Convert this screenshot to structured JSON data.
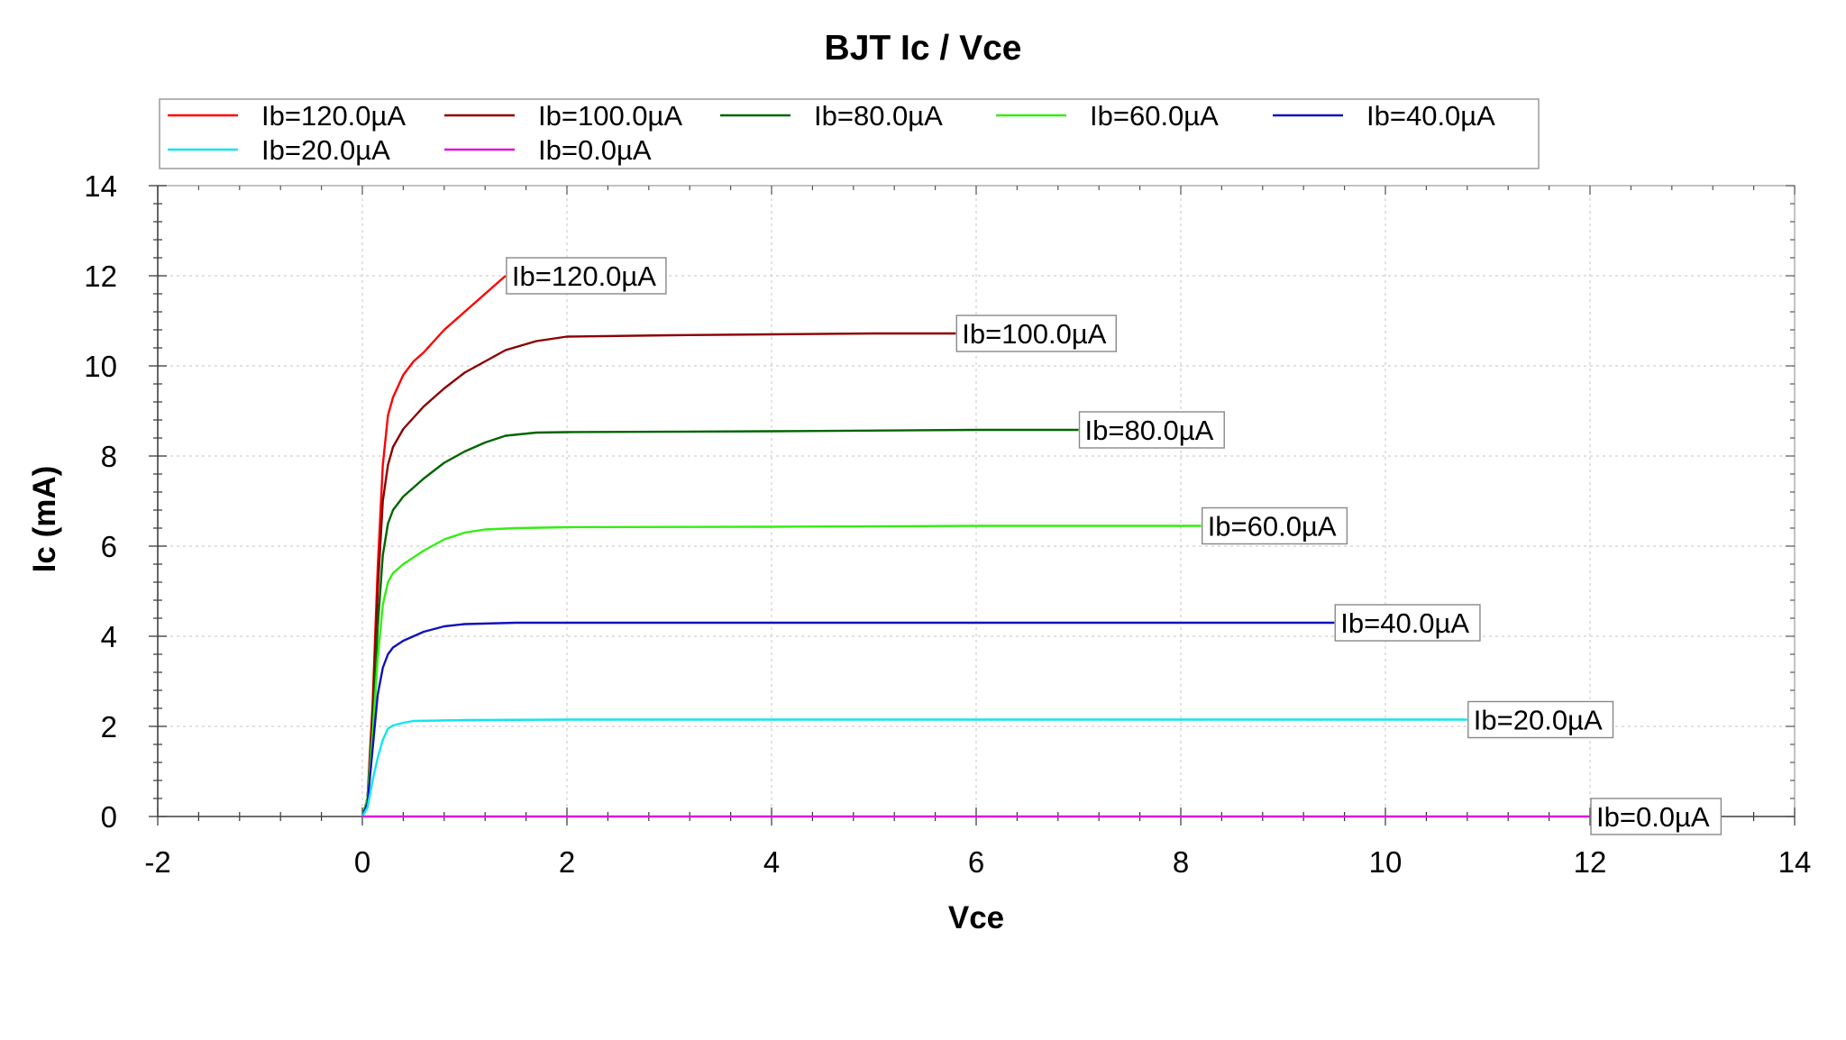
{
  "chart_data": {
    "type": "line",
    "title": "BJT Ic / Vce",
    "xlabel": "Vce",
    "ylabel": "Ic (mA)",
    "xlim": [
      -2,
      14
    ],
    "ylim": [
      0,
      14
    ],
    "xticks": [
      "-2",
      "0",
      "2",
      "4",
      "6",
      "8",
      "10",
      "12",
      "14"
    ],
    "yticks": [
      "0",
      "2",
      "4",
      "6",
      "8",
      "10",
      "12",
      "14"
    ],
    "grid": true,
    "legend_position": "top",
    "series": [
      {
        "name": "Ib=120.0µA",
        "color": "#ff0000",
        "x": [
          0,
          0.05,
          0.1,
          0.15,
          0.2,
          0.25,
          0.3,
          0.4,
          0.5,
          0.6,
          0.8,
          1.0,
          1.2,
          1.4
        ],
        "y": [
          0,
          0.4,
          2.5,
          5.5,
          7.8,
          8.9,
          9.3,
          9.8,
          10.1,
          10.3,
          10.8,
          11.2,
          11.6,
          12.0
        ]
      },
      {
        "name": "Ib=100.0µA",
        "color": "#8b0000",
        "x": [
          0,
          0.05,
          0.1,
          0.15,
          0.2,
          0.25,
          0.3,
          0.4,
          0.6,
          0.8,
          1.0,
          1.2,
          1.4,
          1.7,
          2.0,
          3.0,
          4.0,
          5.0,
          5.8
        ],
        "y": [
          0,
          0.4,
          2.3,
          5.0,
          7.0,
          7.8,
          8.2,
          8.6,
          9.1,
          9.5,
          9.85,
          10.1,
          10.35,
          10.55,
          10.65,
          10.68,
          10.7,
          10.72,
          10.72
        ]
      },
      {
        "name": "Ib=80.0µA",
        "color": "#006400",
        "x": [
          0,
          0.05,
          0.1,
          0.15,
          0.2,
          0.25,
          0.3,
          0.4,
          0.6,
          0.8,
          1.0,
          1.2,
          1.4,
          1.7,
          2.0,
          4.0,
          6.0,
          7.0
        ],
        "y": [
          0,
          0.4,
          2.0,
          4.2,
          5.8,
          6.5,
          6.8,
          7.1,
          7.5,
          7.85,
          8.1,
          8.3,
          8.45,
          8.52,
          8.53,
          8.55,
          8.58,
          8.58
        ]
      },
      {
        "name": "Ib=60.0µA",
        "color": "#33ee11",
        "x": [
          0,
          0.05,
          0.1,
          0.15,
          0.2,
          0.25,
          0.3,
          0.4,
          0.6,
          0.8,
          1.0,
          1.2,
          1.5,
          2.0,
          4.0,
          6.0,
          8.2
        ],
        "y": [
          0,
          0.4,
          1.8,
          3.5,
          4.7,
          5.2,
          5.4,
          5.6,
          5.9,
          6.15,
          6.3,
          6.37,
          6.4,
          6.42,
          6.43,
          6.45,
          6.45
        ]
      },
      {
        "name": "Ib=40.0µA",
        "color": "#1111bb",
        "x": [
          0,
          0.05,
          0.1,
          0.15,
          0.2,
          0.25,
          0.3,
          0.4,
          0.6,
          0.8,
          1.0,
          1.5,
          2.0,
          4.0,
          6.0,
          8.0,
          9.5
        ],
        "y": [
          0,
          0.3,
          1.5,
          2.7,
          3.3,
          3.6,
          3.75,
          3.9,
          4.1,
          4.22,
          4.27,
          4.3,
          4.3,
          4.3,
          4.3,
          4.3,
          4.3
        ]
      },
      {
        "name": "Ib=20.0µA",
        "color": "#11e5ee",
        "x": [
          0,
          0.05,
          0.1,
          0.15,
          0.2,
          0.25,
          0.3,
          0.4,
          0.5,
          1.0,
          2.0,
          4.0,
          6.0,
          8.0,
          10.8
        ],
        "y": [
          0,
          0.2,
          0.8,
          1.3,
          1.7,
          1.95,
          2.02,
          2.08,
          2.12,
          2.14,
          2.15,
          2.15,
          2.15,
          2.15,
          2.15
        ]
      },
      {
        "name": "Ib=0.0µA",
        "color": "#dd11dd",
        "x": [
          0,
          2,
          4,
          6,
          8,
          10,
          12
        ],
        "y": [
          0,
          0,
          0,
          0,
          0,
          0,
          0
        ]
      }
    ],
    "annotations": [
      {
        "text": "Ib=120.0µA",
        "x": 1.4,
        "y": 12.0
      },
      {
        "text": "Ib=100.0µA",
        "x": 5.8,
        "y": 10.72
      },
      {
        "text": "Ib=80.0µA",
        "x": 7.0,
        "y": 8.58
      },
      {
        "text": "Ib=60.0µA",
        "x": 8.2,
        "y": 6.45
      },
      {
        "text": "Ib=40.0µA",
        "x": 9.5,
        "y": 4.3
      },
      {
        "text": "Ib=20.0µA",
        "x": 10.8,
        "y": 2.15
      },
      {
        "text": "Ib=0.0µA",
        "x": 12.0,
        "y": 0.0
      }
    ]
  }
}
